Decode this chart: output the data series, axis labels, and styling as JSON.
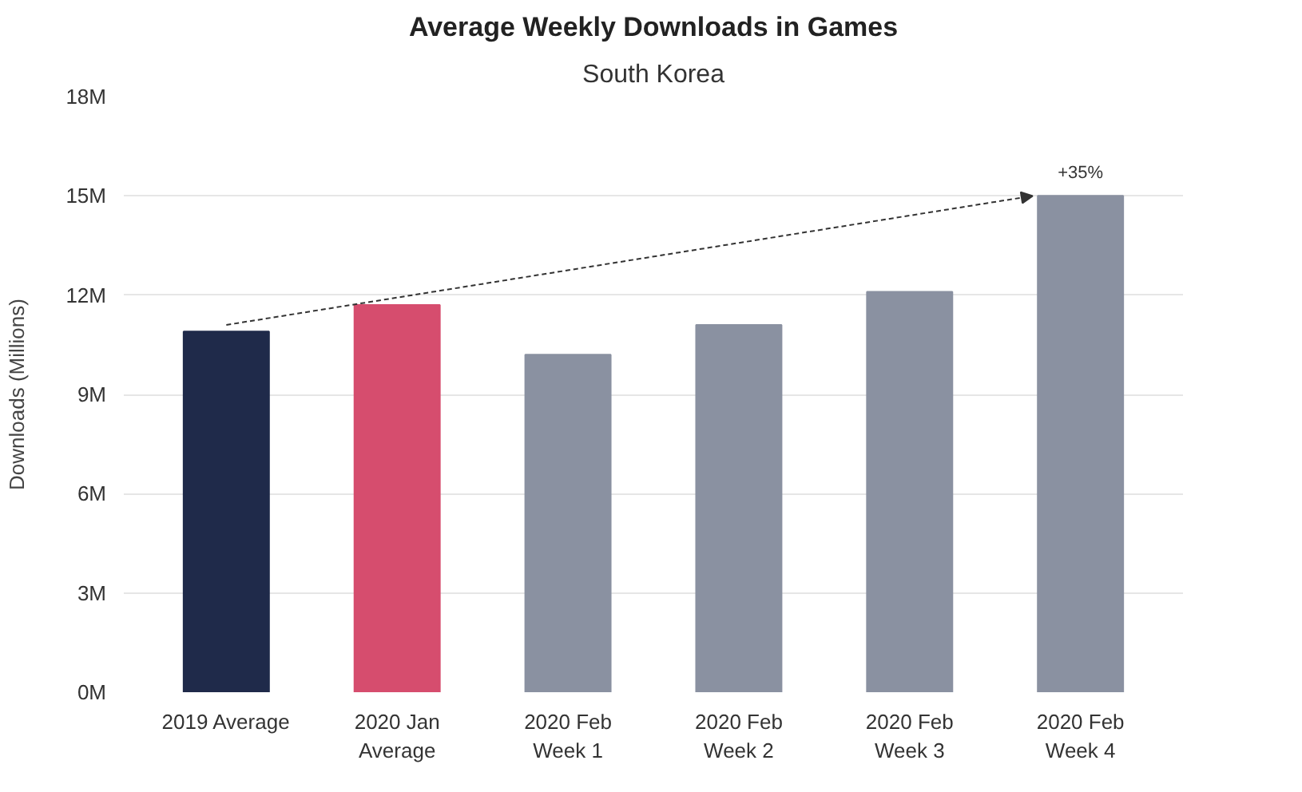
{
  "chart_data": {
    "type": "bar",
    "title": "Average Weekly Downloads in Games",
    "subtitle": "South Korea",
    "ylabel": "Downloads (Millions)",
    "categories": [
      "2019 Average",
      "2020 Jan\nAverage",
      "2020 Feb\nWeek 1",
      "2020 Feb\nWeek 2",
      "2020 Feb\nWeek 3",
      "2020 Feb\nWeek 4"
    ],
    "values": [
      10.9,
      11.7,
      10.2,
      11.1,
      12.1,
      15.0
    ],
    "colors": [
      "#1f2a4a",
      "#d64d6e",
      "#8a91a1",
      "#8a91a1",
      "#8a91a1",
      "#8a91a1"
    ],
    "ylim": [
      0,
      18
    ],
    "yticks": [
      {
        "value": 0,
        "label": "0M"
      },
      {
        "value": 3,
        "label": "3M"
      },
      {
        "value": 6,
        "label": "6M"
      },
      {
        "value": 9,
        "label": "9M"
      },
      {
        "value": 12,
        "label": "12M"
      },
      {
        "value": 15,
        "label": "15M"
      },
      {
        "value": 18,
        "label": "18M"
      }
    ],
    "grid": "y",
    "annotations": [
      {
        "text": "+35%",
        "x": "2020 Feb\nWeek 4",
        "y": 15.0
      }
    ]
  }
}
